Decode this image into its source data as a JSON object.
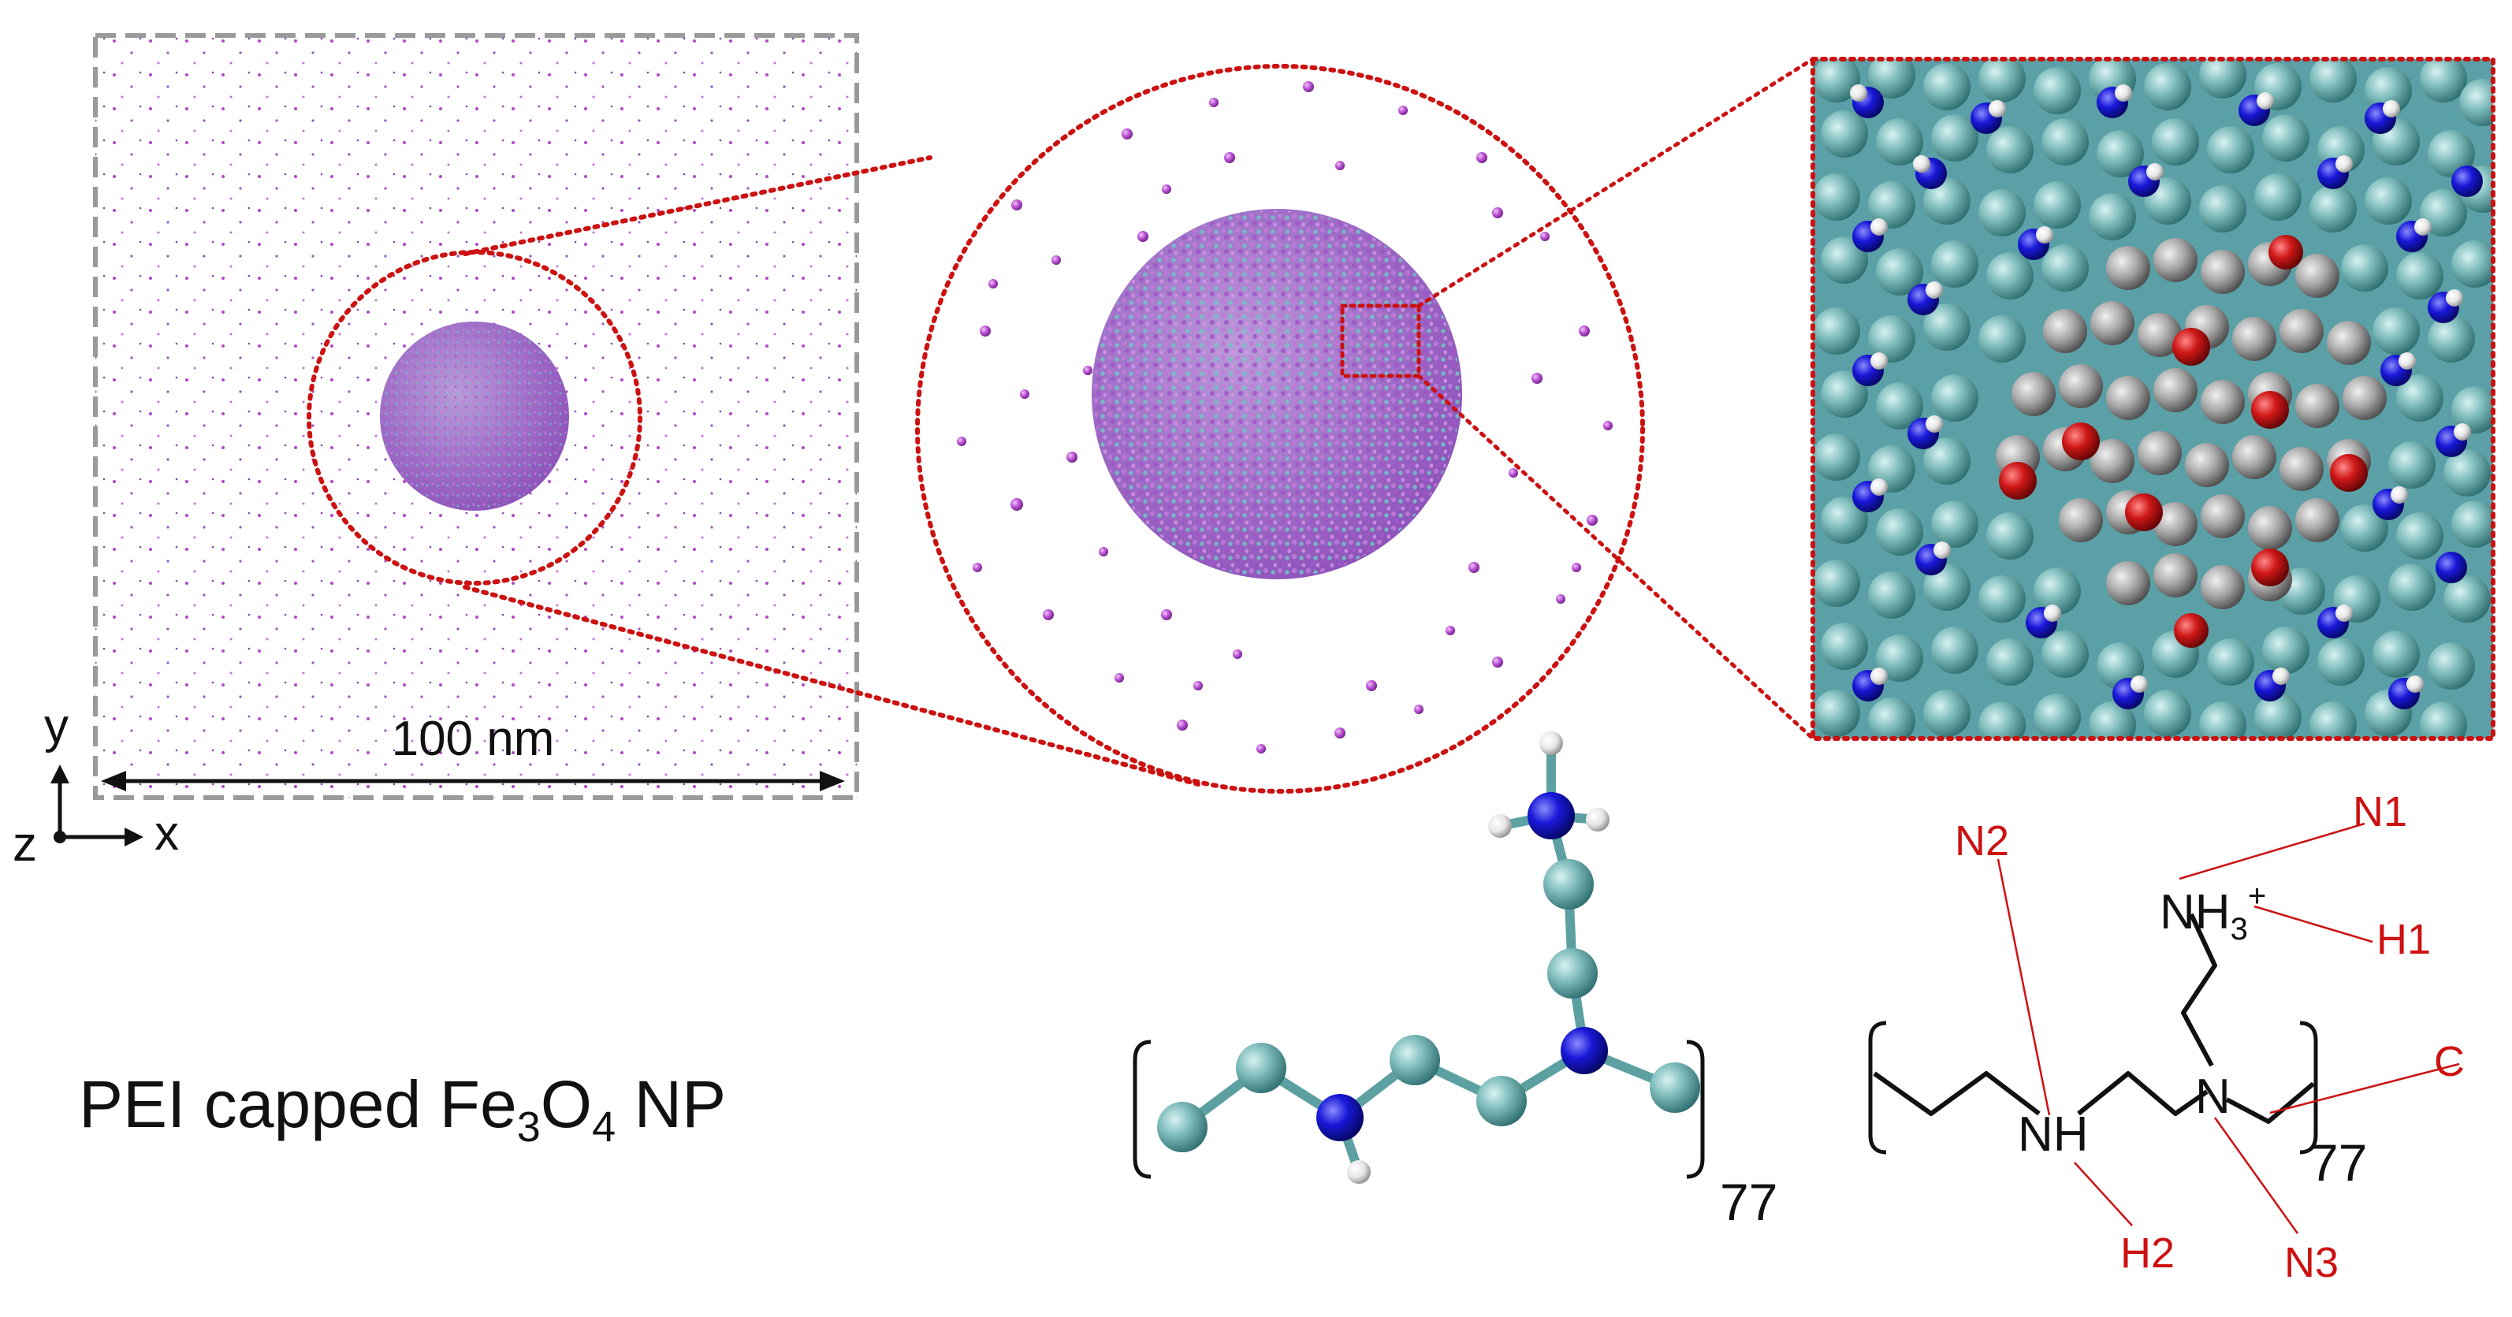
{
  "scale_bar": {
    "label": "100 nm"
  },
  "axes": {
    "y": "y",
    "z": "z",
    "x": "x"
  },
  "title": {
    "prefix": "PEI capped Fe",
    "sub1": "3",
    "mid": "O",
    "sub2": "4",
    "suffix": " NP"
  },
  "ball_stick": {
    "repeat": "77"
  },
  "structure": {
    "nh3": "NH",
    "nh3_sub": "3",
    "nh3_sup": "+",
    "nh": "NH",
    "n": "N",
    "repeat": "77",
    "labels": {
      "n1": "N1",
      "h1": "H1",
      "n2": "N2",
      "c": "C",
      "h2": "H2",
      "n3": "N3"
    }
  },
  "colors": {
    "zoom": "#cc1111",
    "label": "#cc1111",
    "box": "#9a9a9a",
    "carbon": "#6fb0b0",
    "nitrogen": "#1a1ad0",
    "hydrogen": "#f2f2f2",
    "oxygen": "#cc1111",
    "iron": "#9a9a9a",
    "ion": "#b040c8"
  }
}
